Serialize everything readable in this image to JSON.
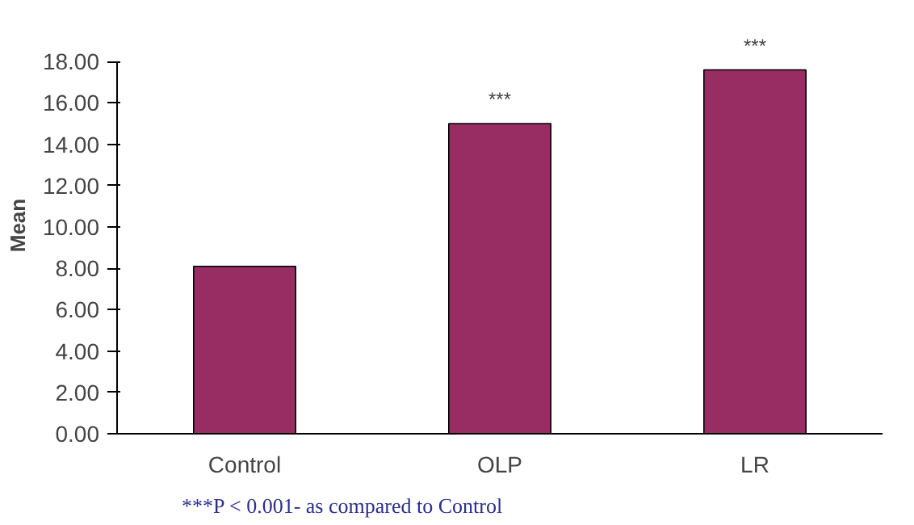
{
  "chart_data": {
    "type": "bar",
    "ylabel": "Mean",
    "categories": [
      "Control",
      "OLP",
      "LR"
    ],
    "values": [
      8.1,
      15.0,
      17.6
    ],
    "color": "#972d62",
    "ylim": [
      0,
      18
    ],
    "yticks": [
      {
        "value": 0,
        "label": "0.00"
      },
      {
        "value": 2,
        "label": "2.00"
      },
      {
        "value": 4,
        "label": "4.00"
      },
      {
        "value": 6,
        "label": "6.00"
      },
      {
        "value": 8,
        "label": "8.00"
      },
      {
        "value": 10,
        "label": "10.00"
      },
      {
        "value": 12,
        "label": "12.00"
      },
      {
        "value": 14,
        "label": "14.00"
      },
      {
        "value": 16,
        "label": "16.00"
      },
      {
        "value": 18,
        "label": "18.00"
      }
    ],
    "grid": false,
    "annotations": [
      {
        "text": "***",
        "x": "OLP",
        "y": 15.0
      },
      {
        "text": "***",
        "x": "LR",
        "y": 17.6
      },
      "***P < 0.001- as compared to Control"
    ]
  }
}
